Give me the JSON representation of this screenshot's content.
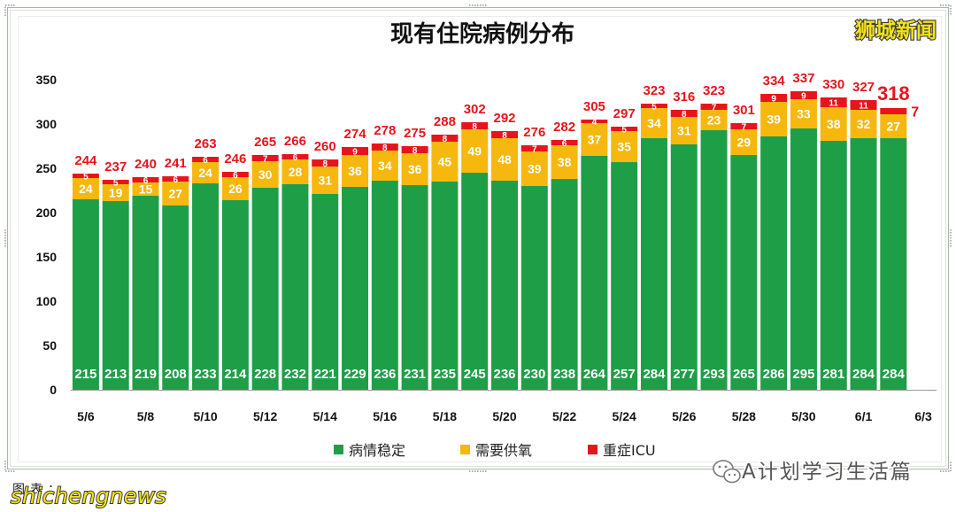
{
  "watermark_top_right": "狮城新闻",
  "source_note": "图表：",
  "watermark_bottom_left": "shichengnews",
  "watermark_bottom_right": "A计划学习生活篇",
  "icons": {
    "wechat": "wechat-icon"
  },
  "colors": {
    "total_label": "#e8141c",
    "watermark_yellow": "#f2e21a",
    "axis": "#9a9a9a",
    "inner_label": "#ffffff"
  },
  "chart_data": {
    "type": "bar",
    "stacked": true,
    "title": "现有住院病例分布",
    "xlabel": "",
    "ylabel": "",
    "x_tick_labels": [
      "5/6",
      "5/8",
      "5/10",
      "5/12",
      "5/14",
      "5/16",
      "5/18",
      "5/20",
      "5/22",
      "5/24",
      "5/26",
      "5/28",
      "5/30",
      "6/1",
      "6/3"
    ],
    "ylim": [
      0,
      350
    ],
    "yticks": [
      0,
      50,
      100,
      150,
      200,
      250,
      300,
      350
    ],
    "grid": false,
    "legend": "bottom",
    "series": [
      {
        "name": "病情稳定",
        "color": "#1f9e48",
        "values": [
          215,
          213,
          219,
          208,
          233,
          214,
          228,
          232,
          221,
          229,
          236,
          231,
          235,
          245,
          236,
          230,
          238,
          264,
          257,
          284,
          277,
          293,
          265,
          286,
          295,
          281,
          284,
          284
        ]
      },
      {
        "name": "需要供氧",
        "color": "#f6b80f",
        "values": [
          24,
          19,
          15,
          27,
          24,
          26,
          30,
          28,
          31,
          36,
          34,
          36,
          45,
          49,
          48,
          39,
          38,
          37,
          35,
          34,
          31,
          23,
          29,
          39,
          33,
          38,
          32,
          27
        ]
      },
      {
        "name": "重症ICU",
        "color": "#e8141c",
        "values": [
          5,
          5,
          6,
          6,
          6,
          6,
          7,
          6,
          8,
          9,
          8,
          8,
          8,
          8,
          8,
          7,
          6,
          4,
          5,
          5,
          8,
          7,
          7,
          9,
          9,
          11,
          11,
          7
        ]
      }
    ],
    "totals": [
      244,
      237,
      240,
      241,
      263,
      246,
      265,
      266,
      260,
      274,
      278,
      275,
      288,
      302,
      292,
      276,
      282,
      305,
      297,
      323,
      316,
      323,
      301,
      334,
      337,
      330,
      327,
      318
    ]
  }
}
